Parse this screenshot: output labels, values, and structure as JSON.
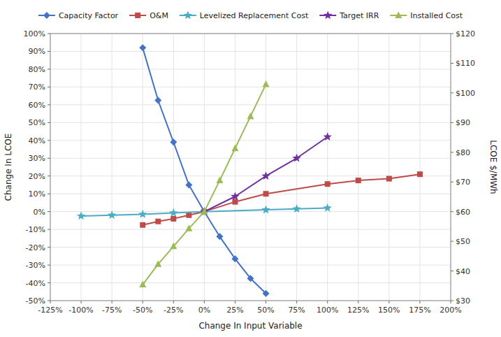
{
  "chart_data": {
    "type": "line",
    "xlabel": "Change In Input Variable",
    "ylabel": "Change In LCOE",
    "y2label": "LCOE $/MWh",
    "xlim": [
      -1.25,
      2.0
    ],
    "ylim": [
      -0.5,
      1.0
    ],
    "y2lim": [
      30,
      120
    ],
    "grid": true,
    "legend": "top",
    "series": [
      {
        "name": "Capacity Factor",
        "color": "#4472C4",
        "marker": "diamond",
        "x": [
          -0.5,
          -0.375,
          -0.25,
          -0.125,
          0.0,
          0.125,
          0.25,
          0.375,
          0.5
        ],
        "values": [
          0.92,
          0.625,
          0.39,
          0.15,
          0.0,
          -0.14,
          -0.265,
          -0.375,
          -0.46
        ]
      },
      {
        "name": "O&M",
        "color": "#BE4B48",
        "marker": "square",
        "x": [
          -0.5,
          -0.375,
          -0.25,
          -0.125,
          0.0,
          0.25,
          0.5,
          1.0,
          1.25,
          1.5,
          1.75
        ],
        "values": [
          -0.075,
          -0.055,
          -0.04,
          -0.02,
          0.0,
          0.055,
          0.1,
          0.155,
          0.175,
          0.185,
          0.21
        ]
      },
      {
        "name": "Levelized Replacement Cost",
        "color": "#4BACC6",
        "marker": "star",
        "x": [
          -1.0,
          -0.75,
          -0.5,
          -0.25,
          0.0,
          0.5,
          0.75,
          1.0
        ],
        "values": [
          -0.025,
          -0.02,
          -0.015,
          -0.007,
          0.0,
          0.01,
          0.015,
          0.02
        ]
      },
      {
        "name": "Target IRR",
        "color": "#7030A0",
        "marker": "star",
        "x": [
          0.0,
          0.25,
          0.5,
          0.75,
          1.0
        ],
        "values": [
          0.0,
          0.085,
          0.2,
          0.3,
          0.42
        ]
      },
      {
        "name": "Installed Cost",
        "color": "#9BBB59",
        "marker": "triangle",
        "x": [
          -0.5,
          -0.375,
          -0.25,
          -0.125,
          0.0,
          0.125,
          0.25,
          0.375,
          0.5
        ],
        "values": [
          -0.41,
          -0.295,
          -0.195,
          -0.095,
          0.0,
          0.175,
          0.355,
          0.535,
          0.715
        ]
      }
    ],
    "xticks": [
      {
        "value": -1.25,
        "label": "-125%"
      },
      {
        "value": -1.0,
        "label": "-100%"
      },
      {
        "value": -0.75,
        "label": "-75%"
      },
      {
        "value": -0.5,
        "label": "-50%"
      },
      {
        "value": -0.25,
        "label": "-25%"
      },
      {
        "value": 0.0,
        "label": "0%"
      },
      {
        "value": 0.25,
        "label": "25%"
      },
      {
        "value": 0.5,
        "label": "50%"
      },
      {
        "value": 0.75,
        "label": "75%"
      },
      {
        "value": 1.0,
        "label": "100%"
      },
      {
        "value": 1.25,
        "label": "125%"
      },
      {
        "value": 1.5,
        "label": "150%"
      },
      {
        "value": 1.75,
        "label": "175%"
      },
      {
        "value": 2.0,
        "label": "200%"
      }
    ],
    "yticks": [
      {
        "value": -0.5,
        "label": "-50%"
      },
      {
        "value": -0.4,
        "label": "-40%"
      },
      {
        "value": -0.3,
        "label": "-30%"
      },
      {
        "value": -0.2,
        "label": "-20%"
      },
      {
        "value": -0.1,
        "label": "-10%"
      },
      {
        "value": 0.0,
        "label": "0%"
      },
      {
        "value": 0.1,
        "label": "10%"
      },
      {
        "value": 0.2,
        "label": "20%"
      },
      {
        "value": 0.3,
        "label": "30%"
      },
      {
        "value": 0.4,
        "label": "40%"
      },
      {
        "value": 0.5,
        "label": "50%"
      },
      {
        "value": 0.6,
        "label": "60%"
      },
      {
        "value": 0.7,
        "label": "70%"
      },
      {
        "value": 0.8,
        "label": "80%"
      },
      {
        "value": 0.9,
        "label": "90%"
      },
      {
        "value": 1.0,
        "label": "100%"
      }
    ],
    "y2ticks": [
      {
        "value": 30,
        "label": "$30"
      },
      {
        "value": 40,
        "label": "$40"
      },
      {
        "value": 50,
        "label": "$50"
      },
      {
        "value": 60,
        "label": "$60"
      },
      {
        "value": 70,
        "label": "$70"
      },
      {
        "value": 80,
        "label": "$80"
      },
      {
        "value": 90,
        "label": "$90"
      },
      {
        "value": 100,
        "label": "$100"
      },
      {
        "value": 110,
        "label": "$110"
      },
      {
        "value": 120,
        "label": "$120"
      }
    ]
  }
}
